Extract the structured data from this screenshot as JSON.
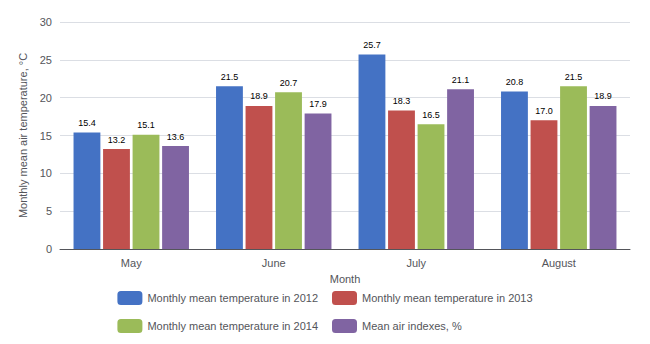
{
  "chart_data": {
    "type": "bar",
    "categories": [
      "May",
      "June",
      "July",
      "August"
    ],
    "series": [
      {
        "name": "Monthly mean temperature in 2012",
        "color": "#4472C4",
        "values": [
          15.4,
          21.5,
          25.7,
          20.8
        ],
        "value_labels": [
          "15.4",
          "21.5",
          "25.7",
          "20.8"
        ]
      },
      {
        "name": "Monthly mean temperature in 2013",
        "color": "#C0504D",
        "values": [
          13.2,
          18.9,
          18.3,
          17.0
        ],
        "value_labels": [
          "13.2",
          "18.9",
          "18.3",
          "17.0"
        ]
      },
      {
        "name": "Monthly mean temperature in 2014",
        "color": "#9BBB59",
        "values": [
          15.1,
          20.7,
          16.5,
          21.5
        ],
        "value_labels": [
          "15.1",
          "20.7",
          "16.5",
          "21.5"
        ]
      },
      {
        "name": "Mean air indexes, %",
        "color": "#8064A2",
        "values": [
          13.6,
          17.9,
          21.1,
          18.9
        ],
        "value_labels": [
          "13.6",
          "17.9",
          "21.1",
          "18.9"
        ]
      }
    ],
    "xlabel": "Month",
    "ylabel": "Monthly mean air temperature, °C",
    "ylim": [
      0,
      30
    ],
    "yticks": [
      0,
      5,
      10,
      15,
      20,
      25,
      30
    ],
    "grid": true,
    "legend": "bottom",
    "data_labels": true
  }
}
